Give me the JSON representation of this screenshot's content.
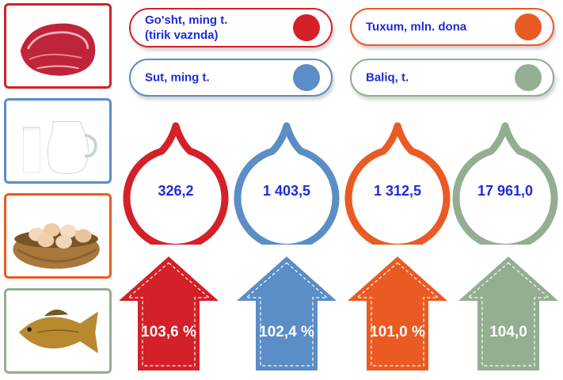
{
  "legend": [
    {
      "label": "Go'sht, ming t.\n(tirik vaznda)",
      "color": "#d42028",
      "border": "#d42028"
    },
    {
      "label": "Tuxum, mln. dona",
      "color": "#ea5b23",
      "border": "#ea5b23"
    },
    {
      "label": "Sut, ming t.",
      "color": "#5b8dc6",
      "border": "#5b8dc6"
    },
    {
      "label": "Baliq, t.",
      "color": "#93ae91",
      "border": "#93ae91"
    }
  ],
  "values": [
    "326,2",
    "1 403,5",
    "1 312,5",
    "17 961,0"
  ],
  "growth": [
    "103,6 %",
    "102,4 %",
    "101,0 %",
    "104,0"
  ],
  "colors": {
    "meat": "#d42028",
    "milk": "#5b8dc6",
    "eggs": "#ea5b23",
    "fish": "#93ae91",
    "text": "#1f2bd8"
  },
  "images": [
    "meat-image",
    "milk-image",
    "eggs-image",
    "fish-image"
  ]
}
